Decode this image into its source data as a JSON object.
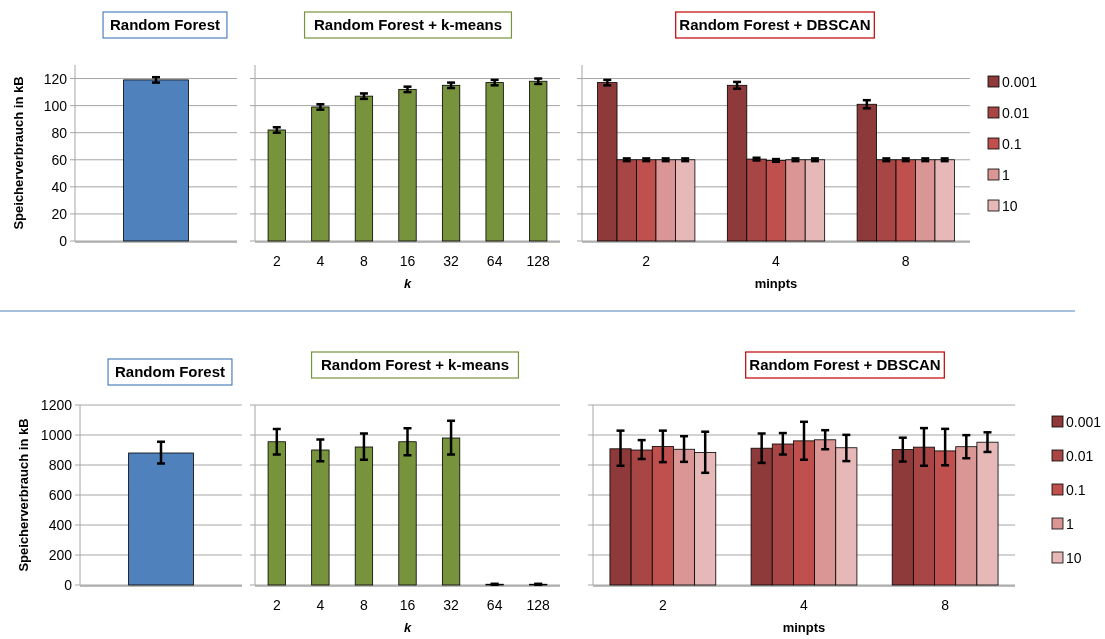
{
  "chart_data": [
    {
      "type": "bar",
      "title": "Random Forest",
      "categories": [
        null
      ],
      "values": [
        119
      ],
      "errors": [
        2
      ],
      "color": "#4f81bd",
      "ylabel": "Speicherverbrauch in kB",
      "ylim": [
        0,
        130
      ],
      "yticks": [
        0,
        20,
        40,
        60,
        80,
        100,
        120
      ],
      "grid": "y",
      "tick_labels": "y"
    },
    {
      "type": "bar",
      "title": "Random Forest + k-means",
      "xlabel": "k",
      "categories": [
        "2",
        "4",
        "8",
        "16",
        "32",
        "64",
        "128"
      ],
      "values": [
        82,
        99,
        107,
        112,
        115,
        117,
        118
      ],
      "errors": [
        2,
        2,
        2,
        2,
        2,
        2,
        2
      ],
      "color": "#77933c",
      "ylim": [
        0,
        130
      ],
      "yticks": [
        {
          "value": 0,
          "label": null
        },
        {
          "value": 20,
          "label": null
        },
        {
          "value": 40,
          "label": null
        },
        {
          "value": 60,
          "label": null
        },
        {
          "value": 80,
          "label": null
        },
        {
          "value": 100,
          "label": null
        },
        {
          "value": 120,
          "label": null
        }
      ],
      "grid": "y",
      "tick_labels": "x"
    },
    {
      "type": "bar",
      "title": "Random Forest + DBSCAN",
      "xlabel": "minpts",
      "categories": [
        "2",
        "4",
        "8"
      ],
      "series": [
        {
          "name": "0.001",
          "color": "#8e3a3a",
          "values": [
            117,
            115,
            101
          ],
          "errors": [
            2,
            2.5,
            3
          ]
        },
        {
          "name": "0.01",
          "color": "#a84646",
          "values": [
            60,
            60.5,
            60
          ],
          "errors": [
            1,
            1,
            1
          ]
        },
        {
          "name": " 0.1",
          "color": "#c0504d",
          "values": [
            60,
            59.5,
            60
          ],
          "errors": [
            1,
            1,
            1
          ]
        },
        {
          "name": "1",
          "color": "#d99694",
          "values": [
            60,
            60,
            60
          ],
          "errors": [
            1,
            1,
            1
          ]
        },
        {
          "name": "10",
          "color": "#e6b9b8",
          "values": [
            60,
            60,
            60
          ],
          "errors": [
            1,
            1,
            1
          ]
        }
      ],
      "ylim": [
        0,
        130
      ],
      "yticks": [
        {
          "value": 0,
          "label": null
        },
        {
          "value": 20,
          "label": null
        },
        {
          "value": 40,
          "label": null
        },
        {
          "value": 60,
          "label": null
        },
        {
          "value": 80,
          "label": null
        },
        {
          "value": 100,
          "label": null
        },
        {
          "value": 120,
          "label": null
        }
      ],
      "grid": "y",
      "tick_labels": "x",
      "legend": "right"
    },
    {
      "type": "bar",
      "title": "Random Forest",
      "categories": [
        null
      ],
      "values": [
        880
      ],
      "errors": [
        [
          810,
          955
        ]
      ],
      "color": "#4f81bd",
      "ylabel": "Speicherverbrauch in kB",
      "ylim": [
        0,
        1200
      ],
      "yticks": [
        0,
        200,
        400,
        600,
        800,
        1000,
        1200
      ],
      "grid": "y",
      "tick_labels": "y"
    },
    {
      "type": "bar",
      "title": "Random Forest + k-means",
      "xlabel": "k",
      "categories": [
        "2",
        "4",
        "8",
        "16",
        "32",
        "64",
        "128"
      ],
      "values": [
        955,
        900,
        920,
        955,
        980,
        5,
        5
      ],
      "errors": [
        [
          870,
          1040
        ],
        [
          825,
          970
        ],
        [
          835,
          1010
        ],
        [
          865,
          1045
        ],
        [
          870,
          1095
        ],
        3,
        3
      ],
      "color": "#77933c",
      "ylim": [
        0,
        1200
      ],
      "yticks": [
        {
          "value": 0,
          "label": null
        },
        {
          "value": 200,
          "label": null
        },
        {
          "value": 400,
          "label": null
        },
        {
          "value": 600,
          "label": null
        },
        {
          "value": 800,
          "label": null
        },
        {
          "value": 1000,
          "label": null
        },
        {
          "value": 1200,
          "label": null
        }
      ],
      "grid": "y",
      "tick_labels": "x"
    },
    {
      "type": "bar",
      "title": "Random Forest + DBSCAN",
      "xlabel": "minpts",
      "categories": [
        "2",
        "4",
        "8"
      ],
      "series": [
        {
          "name": "0.001",
          "color": "#8e3a3a",
          "values": [
            908,
            912,
            903
          ],
          "errors": [
            [
              795,
              1029
            ],
            [
              814,
              1010
            ],
            [
              823,
              982
            ]
          ]
        },
        {
          "name": "0.01",
          "color": "#a84646",
          "values": [
            900,
            940,
            919
          ],
          "errors": [
            [
              840,
              966
            ],
            [
              870,
              1013
            ],
            [
              795,
              1046
            ]
          ]
        },
        {
          "name": " 0.1",
          "color": "#c0504d",
          "values": [
            924,
            961,
            894
          ],
          "errors": [
            [
              819,
              1029
            ],
            [
              835,
              1088
            ],
            [
              798,
              1041
            ]
          ]
        },
        {
          "name": "1",
          "color": "#d99694",
          "values": [
            905,
            968,
            922
          ],
          "errors": [
            [
              821,
              992
            ],
            [
              905,
              1032
            ],
            [
              845,
              999
            ]
          ]
        },
        {
          "name": "10",
          "color": "#e6b9b8",
          "values": [
            884,
            915,
            952
          ],
          "errors": [
            [
              748,
              1022
            ],
            [
              826,
              1001
            ],
            [
              887,
              1018
            ]
          ]
        }
      ],
      "ylim": [
        0,
        1200
      ],
      "yticks": [
        {
          "value": 0,
          "label": null
        },
        {
          "value": 200,
          "label": null
        },
        {
          "value": 400,
          "label": null
        },
        {
          "value": 600,
          "label": null
        },
        {
          "value": 800,
          "label": null
        },
        {
          "value": 1000,
          "label": null
        },
        {
          "value": 1200,
          "label": null
        }
      ],
      "grid": "y",
      "tick_labels": "x",
      "legend": "right"
    }
  ]
}
